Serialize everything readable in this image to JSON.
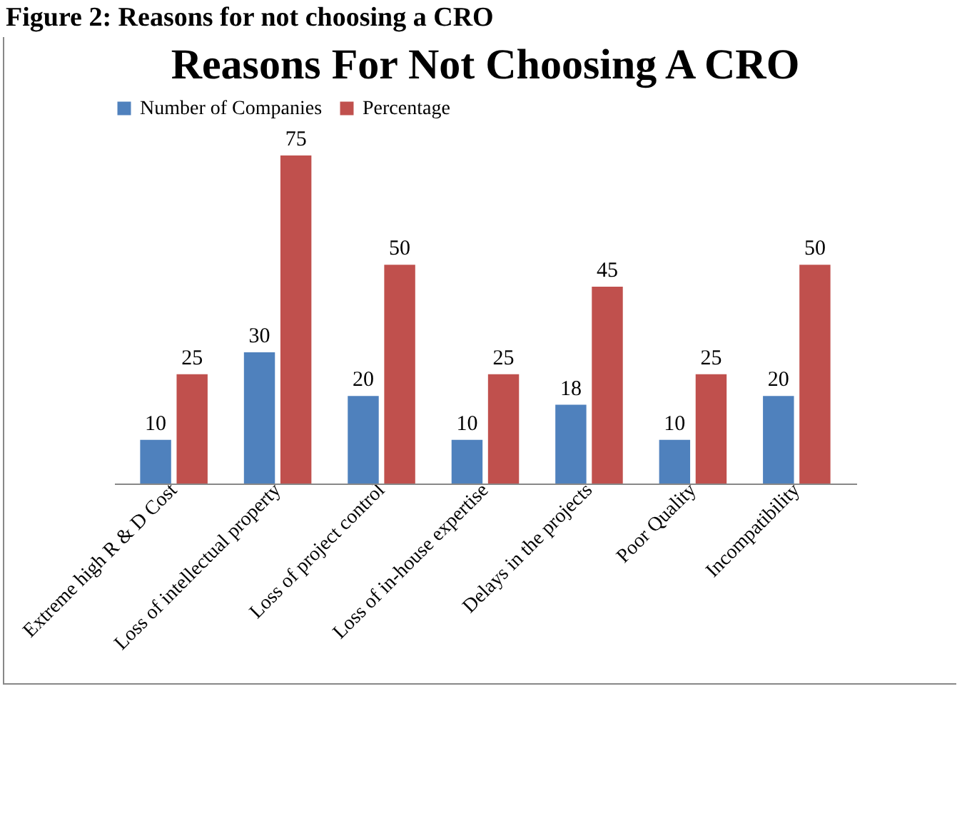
{
  "chart_data": {
    "type": "bar",
    "title": "Reasons For Not Choosing A CRO",
    "annotations": [
      "Figure 2: Reasons for not choosing a CRO"
    ],
    "categories": [
      "Extreme high R & D Cost",
      "Loss of intellectual property",
      "Loss of project control",
      "Loss of in-house expertise",
      "Delays in the projects",
      "Poor Quality",
      "Incompatibility"
    ],
    "series": [
      {
        "name": "Number of Companies",
        "color": "#4f81bd",
        "values": [
          10,
          30,
          20,
          10,
          18,
          10,
          20
        ]
      },
      {
        "name": "Percentage",
        "color": "#c0504d",
        "values": [
          25,
          75,
          50,
          25,
          45,
          25,
          50
        ]
      }
    ],
    "data_labels": true,
    "legend": "top"
  }
}
